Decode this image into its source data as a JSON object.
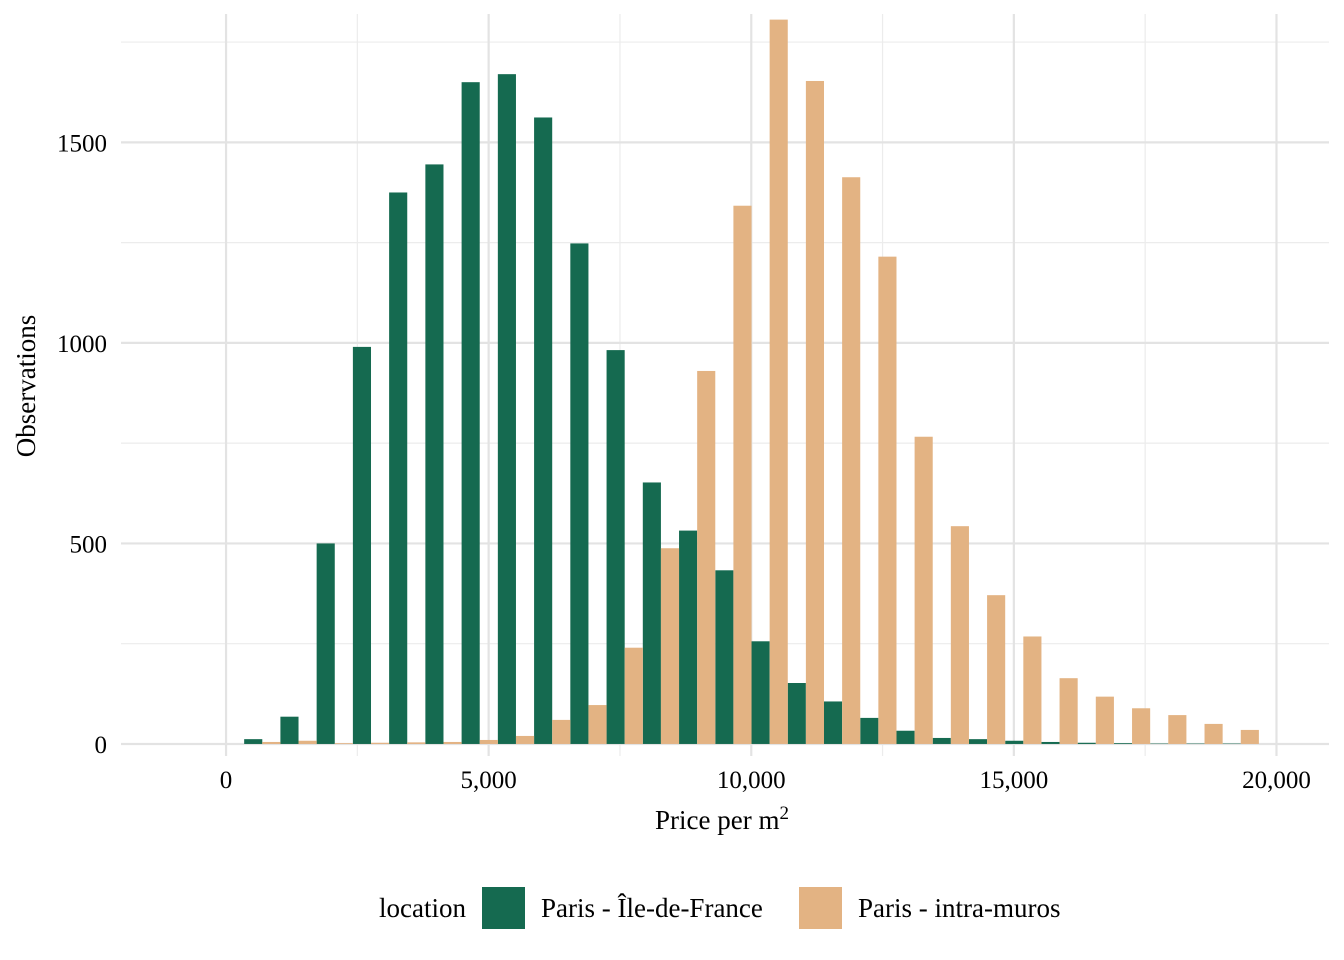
{
  "chart_data": {
    "type": "bar",
    "title": "",
    "xlabel": "Price per m",
    "xlabel_superscript": "2",
    "ylabel": "Observations",
    "xlim": [
      -2000,
      21000
    ],
    "ylim": [
      -30,
      1820
    ],
    "x_ticks": [
      0,
      5000,
      10000,
      15000,
      20000
    ],
    "x_tick_labels": [
      "0",
      "5,000",
      "10,000",
      "15,000",
      "20,000"
    ],
    "y_ticks": [
      0,
      500,
      1000,
      1500
    ],
    "y_tick_labels": [
      "0",
      "500",
      "1000",
      "1500"
    ],
    "bin_width": 690,
    "grid": true,
    "legend": {
      "title": "location",
      "position": "bottom"
    },
    "bin_centers": [
      690,
      1380,
      2070,
      2760,
      3450,
      4140,
      4830,
      5520,
      6210,
      6900,
      7590,
      8280,
      8970,
      9660,
      10350,
      11040,
      11730,
      12420,
      13110,
      13800,
      14490,
      15180,
      15870,
      16560,
      17250,
      17940,
      18630,
      19320
    ],
    "series": [
      {
        "name": "Paris - Île-de-France",
        "color": "#156a50",
        "values": [
          12,
          68,
          500,
          990,
          1375,
          1445,
          1650,
          1670,
          1562,
          1248,
          982,
          652,
          532,
          433,
          256,
          152,
          106,
          65,
          33,
          15,
          12,
          8,
          5,
          3,
          2,
          1,
          1,
          1
        ]
      },
      {
        "name": "Paris - intra-muros",
        "color": "#e3b383",
        "values": [
          5,
          8,
          2,
          3,
          4,
          5,
          10,
          20,
          60,
          97,
          240,
          488,
          930,
          1342,
          1806,
          1653,
          1413,
          1215,
          766,
          543,
          371,
          268,
          164,
          118,
          89,
          72,
          50,
          35
        ]
      }
    ]
  }
}
